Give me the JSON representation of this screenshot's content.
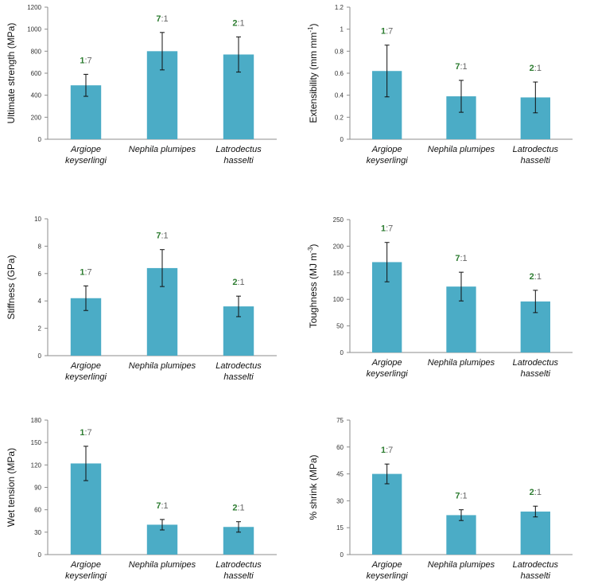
{
  "colors": {
    "bar": "#4bacc6",
    "ratio_bold": "#2e7d32",
    "ratio_rest": "#666666"
  },
  "chart_data": [
    {
      "type": "bar",
      "ylabel": "Ultimate strength (MPa)",
      "ylim": [
        0,
        1200
      ],
      "yticks": [
        "0",
        "200",
        "400",
        "600",
        "800",
        "1000",
        "1200"
      ],
      "categories": [
        [
          "Argiope",
          "keyserlingi"
        ],
        [
          "Nephila plumipes"
        ],
        [
          "Latrodectus",
          "hasselti"
        ]
      ],
      "values": [
        490,
        800,
        770
      ],
      "errors": [
        100,
        170,
        160
      ],
      "ratios": [
        [
          "1",
          ":7"
        ],
        [
          "7",
          ":1"
        ],
        [
          "2",
          ":1"
        ]
      ]
    },
    {
      "type": "bar",
      "ylabel": "Extensibility (mm mm",
      "ylabel_sup": "-1",
      "ylabel_end": ")",
      "ylim": [
        0,
        1.2
      ],
      "yticks": [
        "0",
        "0.2",
        "0.4",
        "0.6",
        "0.8",
        "1",
        "1.2"
      ],
      "categories": [
        [
          "Argiope",
          "keyserlingi"
        ],
        [
          "Nephila plumipes"
        ],
        [
          "Latrodectus",
          "hasselti"
        ]
      ],
      "values": [
        0.62,
        0.39,
        0.38
      ],
      "errors": [
        0.235,
        0.145,
        0.14
      ],
      "ratios": [
        [
          "1",
          ":7"
        ],
        [
          "7",
          ":1"
        ],
        [
          "2",
          ":1"
        ]
      ]
    },
    {
      "type": "bar",
      "ylabel": "Stiffness (GPa)",
      "ylim": [
        0,
        10
      ],
      "yticks": [
        "0",
        "2",
        "4",
        "6",
        "8",
        "10"
      ],
      "categories": [
        [
          "Argiope",
          "keyserlingi"
        ],
        [
          "Nephila plumipes"
        ],
        [
          "Latrodectus",
          "hasselti"
        ]
      ],
      "values": [
        4.2,
        6.4,
        3.6
      ],
      "errors": [
        0.9,
        1.35,
        0.75
      ],
      "ratios": [
        [
          "1",
          ":7"
        ],
        [
          "7",
          ":1"
        ],
        [
          "2",
          ":1"
        ]
      ]
    },
    {
      "type": "bar",
      "ylabel": "Toughness (MJ m",
      "ylabel_sup": "-3",
      "ylabel_end": ")",
      "ylim": [
        0,
        250
      ],
      "yticks": [
        "0",
        "50",
        "100",
        "150",
        "200",
        "250"
      ],
      "categories": [
        [
          "Argiope",
          "keyserlingi"
        ],
        [
          "Nephila plumipes"
        ],
        [
          "Latrodectus",
          "hasselti"
        ]
      ],
      "values": [
        170,
        124,
        96
      ],
      "errors": [
        37,
        27,
        21
      ],
      "ratios": [
        [
          "1",
          ":7"
        ],
        [
          "7",
          ":1"
        ],
        [
          "2",
          ":1"
        ]
      ]
    },
    {
      "type": "bar",
      "ylabel": "Wet tension (MPa)",
      "ylim": [
        0,
        180
      ],
      "yticks": [
        "0",
        "30",
        "60",
        "90",
        "120",
        "150",
        "180"
      ],
      "categories": [
        [
          "Argiope",
          "keyserlingi"
        ],
        [
          "Nephila plumipes"
        ],
        [
          "Latrodectus",
          "hasselti"
        ]
      ],
      "values": [
        122,
        40,
        37
      ],
      "errors": [
        23,
        7,
        7
      ],
      "ratios": [
        [
          "1",
          ":7"
        ],
        [
          "7",
          ":1"
        ],
        [
          "2",
          ":1"
        ]
      ]
    },
    {
      "type": "bar",
      "ylabel": "% shrink (MPa)",
      "ylim": [
        0,
        75
      ],
      "yticks": [
        "0",
        "15",
        "30",
        "45",
        "60",
        "75"
      ],
      "categories": [
        [
          "Argiope",
          "keyserlingi"
        ],
        [
          "Nephila plumipes"
        ],
        [
          "Latrodectus",
          "hasselti"
        ]
      ],
      "values": [
        45,
        22,
        24
      ],
      "errors": [
        5.5,
        3,
        3
      ],
      "ratios": [
        [
          "1",
          ":7"
        ],
        [
          "7",
          ":1"
        ],
        [
          "2",
          ":1"
        ]
      ]
    }
  ]
}
